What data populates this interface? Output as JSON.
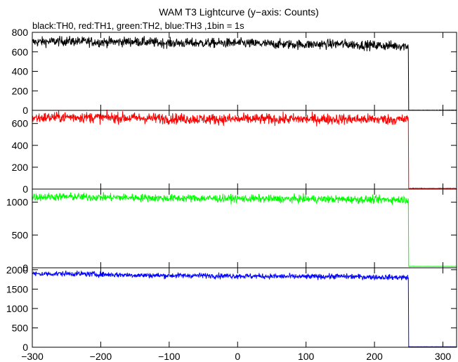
{
  "title": "WAM T3 Lightcurve (y−axis: Counts)",
  "subtitle": "black:TH0, red:TH1, green:TH2, blue:TH3 ,1bin = 1s",
  "chart_data": {
    "type": "line",
    "x_range": [
      -300,
      320
    ],
    "x_ticks": [
      -300,
      -200,
      -100,
      0,
      100,
      200,
      300
    ],
    "x_tick_labels": [
      "−300",
      "−200",
      "−100",
      "0",
      "100",
      "200",
      "300"
    ],
    "bin_seconds": 1,
    "grid": false,
    "panels": [
      {
        "name": "TH0",
        "color": "#000000",
        "y_range": [
          0,
          800
        ],
        "y_ticks": [
          0,
          200,
          400,
          600,
          800
        ],
        "y_tick_labels": [
          "0",
          "200",
          "400",
          "600",
          "800"
        ],
        "curve": {
          "x": [
            -300,
            -250,
            -200,
            -150,
            -100,
            -50,
            0,
            50,
            100,
            150,
            200,
            248
          ],
          "y": [
            700,
            710,
            700,
            705,
            690,
            690,
            690,
            680,
            675,
            680,
            665,
            660
          ]
        },
        "noise": 25,
        "drop_x": 250,
        "after_value": 0
      },
      {
        "name": "TH1",
        "color": "#ff0000",
        "y_range": [
          0,
          720
        ],
        "y_ticks": [
          0,
          200,
          400,
          600
        ],
        "y_tick_labels": [
          "0",
          "200",
          "400",
          "600"
        ],
        "curve": {
          "x": [
            -300,
            -250,
            -200,
            -150,
            -100,
            -50,
            0,
            50,
            100,
            150,
            200,
            248
          ],
          "y": [
            650,
            660,
            655,
            650,
            645,
            640,
            640,
            640,
            640,
            640,
            638,
            635
          ]
        },
        "noise": 25,
        "drop_x": 250,
        "after_value": 5
      },
      {
        "name": "TH2",
        "color": "#00ff00",
        "y_range": [
          0,
          1200
        ],
        "y_ticks": [
          0,
          500,
          1000
        ],
        "y_tick_labels": [
          "0",
          "500",
          "1000"
        ],
        "curve": {
          "x": [
            -300,
            -250,
            -200,
            -150,
            -100,
            -50,
            0,
            50,
            100,
            150,
            200,
            248
          ],
          "y": [
            1080,
            1085,
            1075,
            1070,
            1060,
            1060,
            1055,
            1050,
            1050,
            1045,
            1040,
            1040
          ]
        },
        "noise": 30,
        "drop_x": 250,
        "after_value": 20
      },
      {
        "name": "TH3",
        "color": "#0000ff",
        "y_range": [
          0,
          2050
        ],
        "y_ticks": [
          0,
          500,
          1000,
          1500,
          2000
        ],
        "y_tick_labels": [
          "0",
          "500",
          "1000",
          "1500",
          "2000"
        ],
        "curve": {
          "x": [
            -300,
            -250,
            -200,
            -150,
            -100,
            -50,
            0,
            50,
            100,
            150,
            200,
            248
          ],
          "y": [
            1890,
            1900,
            1880,
            1860,
            1850,
            1850,
            1840,
            1830,
            1820,
            1830,
            1810,
            1800
          ]
        },
        "noise": 35,
        "drop_x": 250,
        "after_value": 10
      }
    ]
  }
}
